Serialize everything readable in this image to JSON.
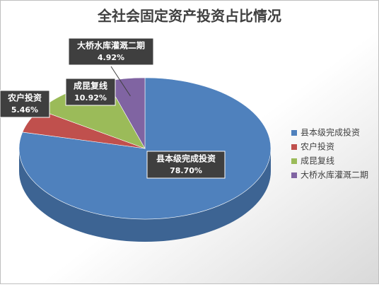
{
  "chart_data": {
    "type": "pie3d",
    "title": "全社会固定资产投资占比情况",
    "categories": [
      "县本级完成投资",
      "农户投资",
      "成昆复线",
      "大桥水库灌溉二期"
    ],
    "values": [
      78.7,
      5.46,
      10.92,
      4.92
    ],
    "value_labels": [
      "78.70%",
      "5.46%",
      "10.92%",
      "4.92%"
    ],
    "colors": [
      "#4f81bd",
      "#c0504d",
      "#9bbb59",
      "#8064a2"
    ],
    "legend": "right"
  }
}
